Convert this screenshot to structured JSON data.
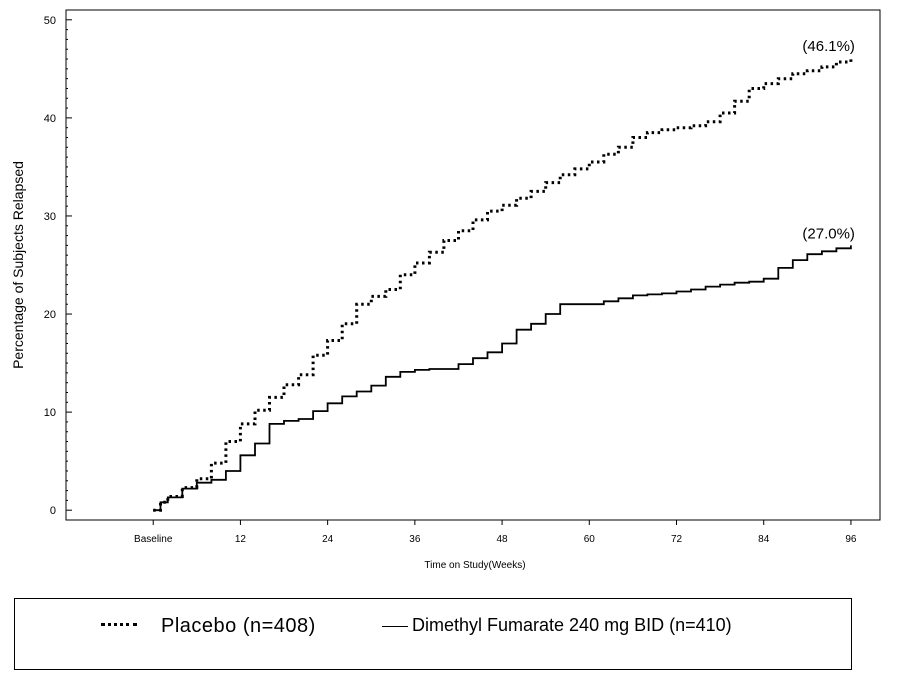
{
  "chart_data": {
    "type": "line",
    "title": "",
    "xlabel": "Time on Study(Weeks)",
    "ylabel": "Percentage of Subjects Relapsed",
    "xlim": [
      -12,
      100
    ],
    "ylim": [
      -1,
      51
    ],
    "x_ticks": [
      0,
      12,
      24,
      36,
      48,
      60,
      72,
      84,
      96
    ],
    "x_tick_labels": [
      "Baseline",
      "12",
      "24",
      "36",
      "48",
      "60",
      "72",
      "84",
      "96"
    ],
    "y_ticks": [
      0,
      10,
      20,
      30,
      40,
      50
    ],
    "y_tick_labels": [
      "0",
      "10",
      "20",
      "30",
      "40",
      "50"
    ],
    "grid": false,
    "legend_position": "bottom",
    "series": [
      {
        "name": "Placebo (n=408)",
        "style": "dotted",
        "color": "#000000",
        "end_label": "(46.1%)",
        "x": [
          0,
          1,
          2,
          4,
          6,
          8,
          10,
          12,
          14,
          16,
          18,
          20,
          22,
          24,
          26,
          28,
          30,
          32,
          34,
          36,
          38,
          40,
          42,
          44,
          46,
          48,
          50,
          52,
          54,
          56,
          58,
          60,
          62,
          64,
          66,
          68,
          70,
          72,
          74,
          76,
          78,
          80,
          82,
          84,
          86,
          88,
          90,
          92,
          94,
          96
        ],
        "y": [
          0,
          0.8,
          1.4,
          2.3,
          3.2,
          4.8,
          7.0,
          8.8,
          10.2,
          11.5,
          12.8,
          13.8,
          15.8,
          17.3,
          19.0,
          21.0,
          21.8,
          22.5,
          24.0,
          25.2,
          26.3,
          27.5,
          28.5,
          29.6,
          30.5,
          31.1,
          31.8,
          32.5,
          33.4,
          34.2,
          34.8,
          35.5,
          36.3,
          37.0,
          38.0,
          38.5,
          38.8,
          39.0,
          39.2,
          39.6,
          40.5,
          41.7,
          43.0,
          43.5,
          44.0,
          44.5,
          44.8,
          45.2,
          45.7,
          46.1
        ]
      },
      {
        "name": "Dimethyl  Fumarate  240 mg BID  (n=410)",
        "style": "solid",
        "color": "#000000",
        "end_label": "(27.0%)",
        "x": [
          0,
          1,
          2,
          4,
          6,
          8,
          10,
          12,
          14,
          16,
          18,
          20,
          22,
          24,
          26,
          28,
          30,
          32,
          34,
          36,
          38,
          40,
          42,
          44,
          46,
          48,
          50,
          52,
          54,
          56,
          58,
          60,
          62,
          64,
          66,
          68,
          70,
          72,
          74,
          76,
          78,
          80,
          82,
          84,
          86,
          88,
          90,
          92,
          94,
          96
        ],
        "y": [
          0,
          0.8,
          1.3,
          2.2,
          2.8,
          3.1,
          4.0,
          5.6,
          6.8,
          8.8,
          9.1,
          9.3,
          10.1,
          10.9,
          11.6,
          12.1,
          12.7,
          13.6,
          14.1,
          14.3,
          14.4,
          14.4,
          14.9,
          15.5,
          16.1,
          17.0,
          18.4,
          19.0,
          20.0,
          21.0,
          21.0,
          21.0,
          21.3,
          21.6,
          21.9,
          22.0,
          22.1,
          22.3,
          22.5,
          22.8,
          23.0,
          23.2,
          23.3,
          23.6,
          24.7,
          25.5,
          26.1,
          26.4,
          26.7,
          27.0
        ]
      }
    ]
  },
  "legend": {
    "placebo_label": "Placebo (n=408)",
    "dmf_label": "Dimethyl  Fumarate  240 mg BID  (n=410)"
  }
}
